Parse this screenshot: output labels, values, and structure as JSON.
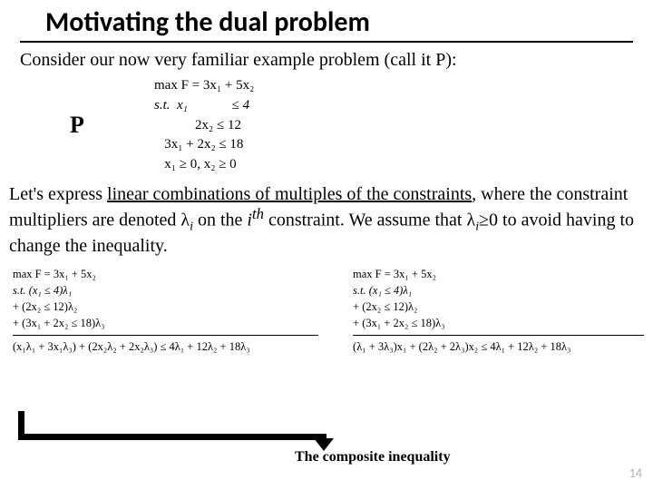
{
  "title": "Motivating the dual problem",
  "intro": "Consider our now very familiar example problem (call it P):",
  "problem_label": "P",
  "primal": {
    "obj": "max F = 3x₁ + 5x₂",
    "st": "s.t.  x₁             ≤ 4",
    "c2": "            2x₂ ≤ 12",
    "c3": "   3x₁ + 2x₂ ≤ 18",
    "nn": "   x₁ ≥ 0, x₂ ≥ 0"
  },
  "body1": "Let's express ",
  "body_underlined": "linear combinations of multiples of the constraints",
  "body2": ", where the constraint multipliers are denoted λ",
  "body3": " on the ",
  "body4": " constraint. We assume that λ",
  "body5": "≥0 to avoid having to change the inequality.",
  "sub_i": "i",
  "sup_th": "th",
  "left": {
    "l1": "max F = 3x₁ + 5x₂",
    "l2": "s.t.    (x₁            ≤ 4)λ₁",
    "l3": "+              (2x₂ ≤ 12)λ₂",
    "l4": "     + (3x₁ + 2x₂ ≤ 18)λ₃",
    "l5": "(x₁λ₁ + 3x₁λ₃) + (2x₂λ₂ + 2x₂λ₃) ≤ 4λ₁ + 12λ₂ + 18λ₃"
  },
  "right": {
    "r1": "max F = 3x₁ + 5x₂",
    "r2": "s.t.     (x₁            ≤ 4)λ₁",
    "r3": "+               (2x₂ ≤ 12)λ₂",
    "r4": "      + (3x₁ + 2x₂ ≤ 18)λ₃",
    "r5": "(λ₁ + 3λ₃)x₁ + (2λ₂ + 2λ₃)x₂ ≤ 4λ₁ + 12λ₂ + 18λ₃"
  },
  "composite": "The composite inequality",
  "page": "14",
  "colors": {
    "text": "#000000",
    "bg": "#ffffff",
    "pagenum": "#b0b0b0"
  }
}
